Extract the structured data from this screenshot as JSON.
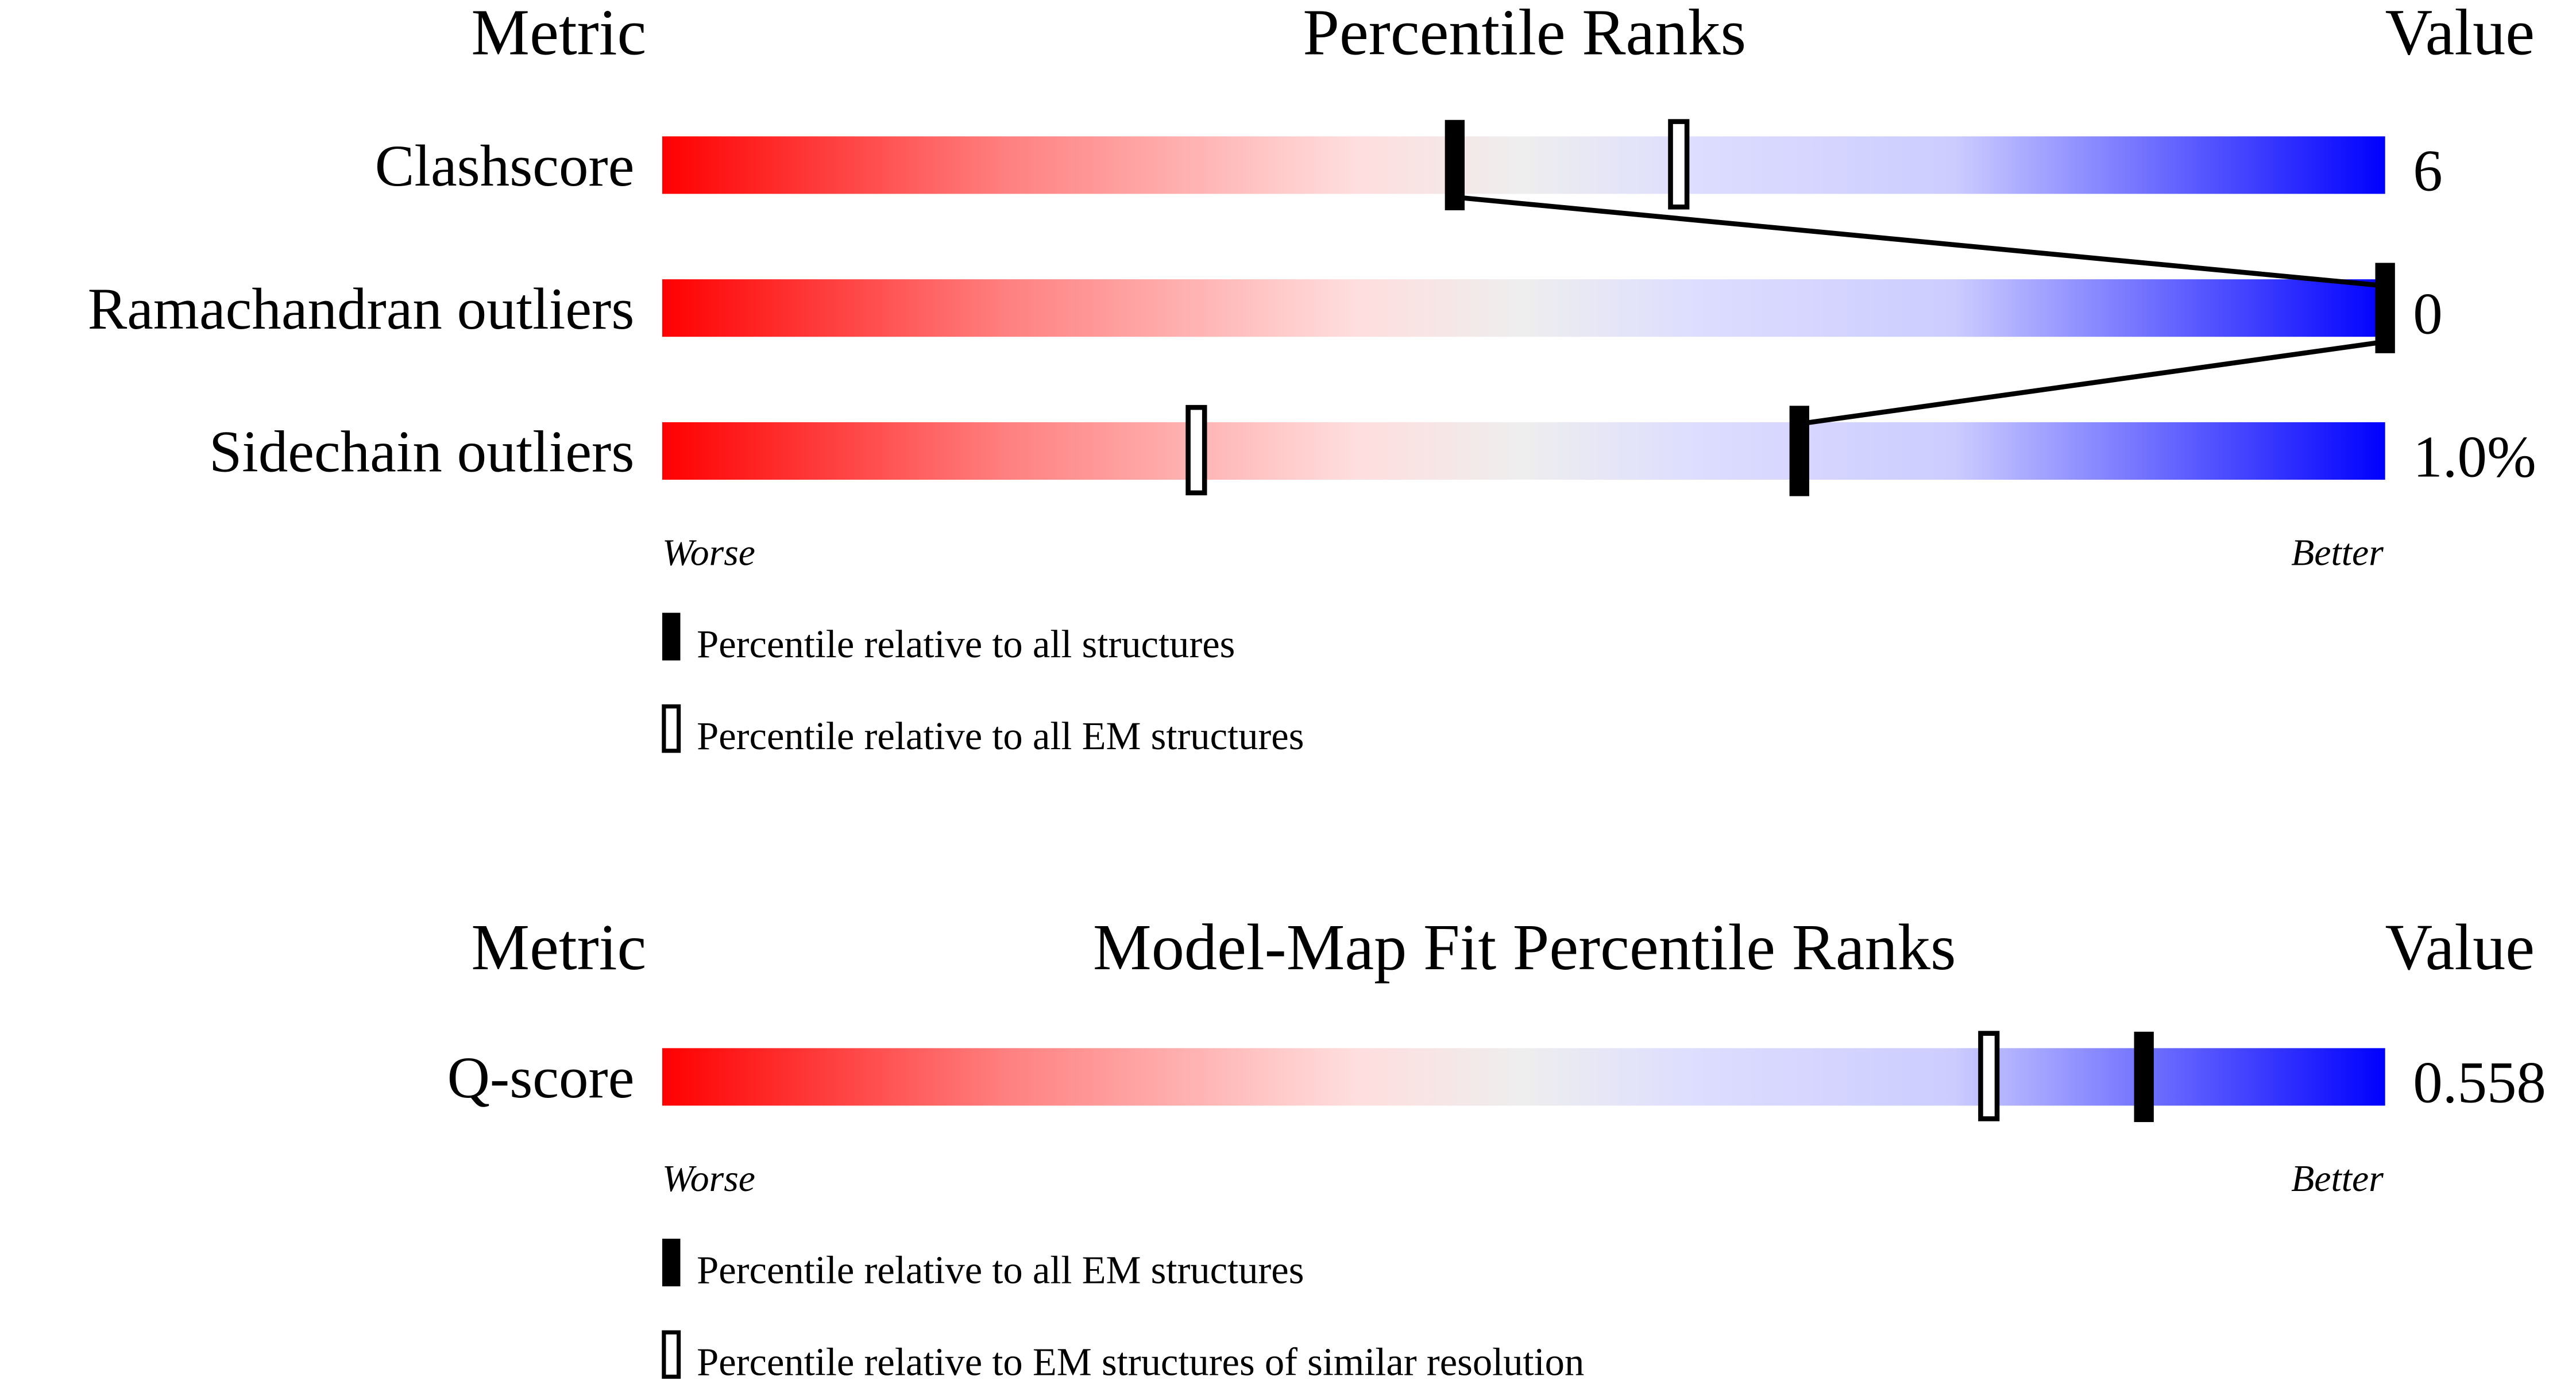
{
  "chart_data": [
    {
      "type": "percentile-slider",
      "headers": {
        "metric": "Metric",
        "title": "Percentile Ranks",
        "value": "Value"
      },
      "axis": {
        "left": "Worse",
        "right": "Better",
        "range": [
          0,
          100
        ]
      },
      "rows": [
        {
          "metric": "Clashscore",
          "value": "6",
          "percentile_all": 46,
          "percentile_subset": 59
        },
        {
          "metric": "Ramachandran outliers",
          "value": "0",
          "percentile_all": 100,
          "percentile_subset": null
        },
        {
          "metric": "Sidechain outliers",
          "value": "1.0%",
          "percentile_all": 66,
          "percentile_subset": 31
        }
      ],
      "legend": {
        "filled": "Percentile relative to all structures",
        "open": "Percentile relative to all EM structures"
      },
      "connect_filled_markers": true
    },
    {
      "type": "percentile-slider",
      "headers": {
        "metric": "Metric",
        "title": "Model-Map Fit Percentile Ranks",
        "value": "Value"
      },
      "axis": {
        "left": "Worse",
        "right": "Better",
        "range": [
          0,
          100
        ]
      },
      "rows": [
        {
          "metric": "Q-score",
          "value": "0.558",
          "percentile_all": 86,
          "percentile_subset": 77
        }
      ],
      "legend": {
        "filled": "Percentile relative to all EM structures",
        "open": "Percentile relative to EM structures of similar resolution"
      },
      "connect_filled_markers": false
    }
  ],
  "colors": {
    "worse": "#ff0000",
    "mid_red": "#ffdddd",
    "neutral": "#eeeeee",
    "mid_blue": "#ddddff",
    "better": "#0000ff",
    "marker": "#000000"
  }
}
